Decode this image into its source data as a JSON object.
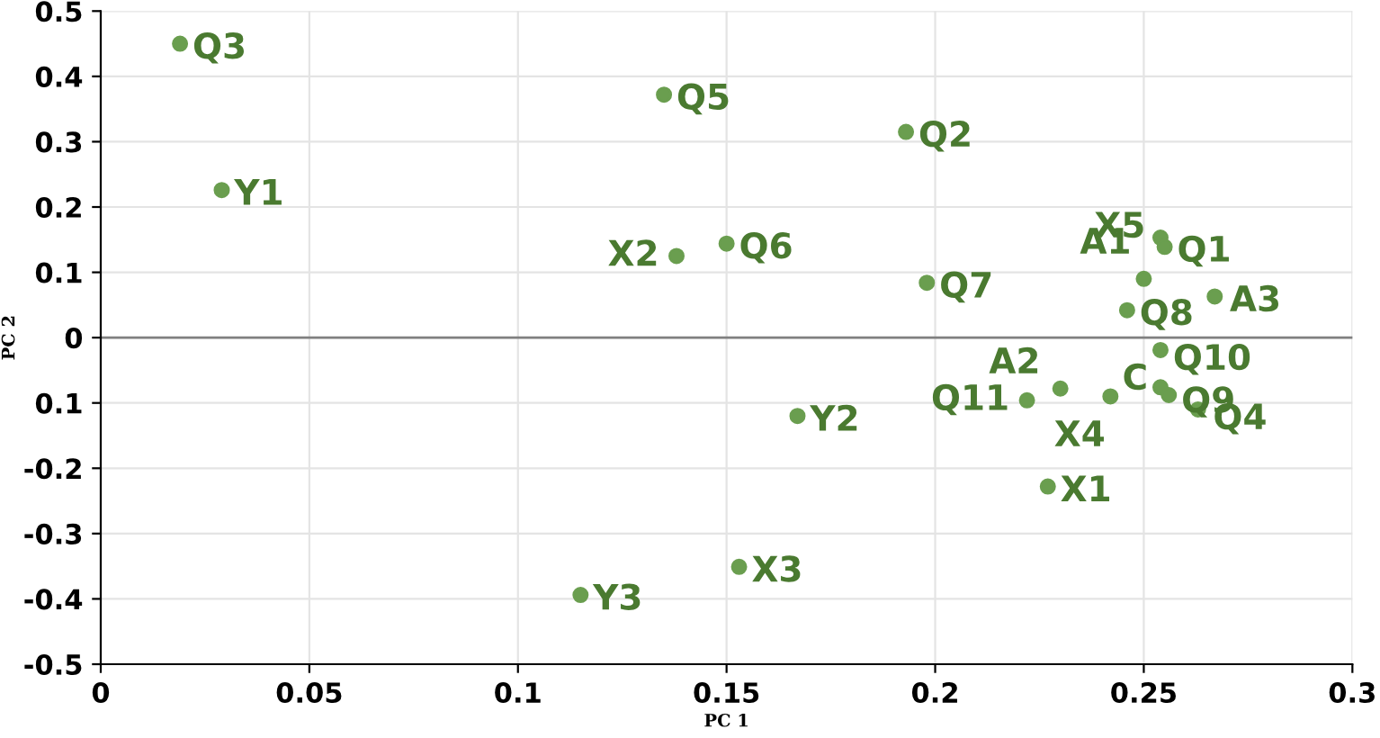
{
  "chart_data": {
    "type": "scatter",
    "xlabel": "PC 1",
    "ylabel": "PC 2",
    "x": [
      0.019,
      0.029,
      0.135,
      0.193,
      0.138,
      0.15,
      0.198,
      0.246,
      0.254,
      0.255,
      0.25,
      0.267,
      0.254,
      0.23,
      0.222,
      0.242,
      0.254,
      0.256,
      0.263,
      0.167,
      0.227,
      0.153,
      0.115
    ],
    "series": [
      {
        "color": "#6a9e4f",
        "values": [
          0.45,
          0.226,
          0.372,
          0.315,
          0.125,
          0.144,
          0.084,
          0.042,
          0.153,
          0.139,
          0.09,
          0.063,
          -0.019,
          -0.078,
          -0.096,
          -0.09,
          -0.076,
          -0.088,
          -0.11,
          -0.12,
          -0.228,
          -0.351,
          -0.394
        ]
      }
    ],
    "annotations": [
      {
        "text": "Q3",
        "x": 0.019,
        "y": 0.45
      },
      {
        "text": "Y1",
        "x": 0.029,
        "y": 0.226
      },
      {
        "text": "Q5",
        "x": 0.135,
        "y": 0.372
      },
      {
        "text": "Q2",
        "x": 0.193,
        "y": 0.315
      },
      {
        "text": "X2",
        "x": 0.138,
        "y": 0.125
      },
      {
        "text": "Q6",
        "x": 0.15,
        "y": 0.144
      },
      {
        "text": "Q7",
        "x": 0.198,
        "y": 0.084
      },
      {
        "text": "Q8",
        "x": 0.246,
        "y": 0.042
      },
      {
        "text": "X5",
        "x": 0.254,
        "y": 0.153
      },
      {
        "text": "Q1",
        "x": 0.255,
        "y": 0.139
      },
      {
        "text": "A1",
        "x": 0.25,
        "y": 0.09
      },
      {
        "text": "A3",
        "x": 0.267,
        "y": 0.063
      },
      {
        "text": "Q10",
        "x": 0.254,
        "y": -0.019
      },
      {
        "text": "A2",
        "x": 0.23,
        "y": -0.078
      },
      {
        "text": "Q11",
        "x": 0.222,
        "y": -0.096
      },
      {
        "text": "X4",
        "x": 0.242,
        "y": -0.09
      },
      {
        "text": "C",
        "x": 0.254,
        "y": -0.076
      },
      {
        "text": "Q9",
        "x": 0.256,
        "y": -0.088
      },
      {
        "text": "Q4",
        "x": 0.263,
        "y": -0.11
      },
      {
        "text": "Y2",
        "x": 0.167,
        "y": -0.12
      },
      {
        "text": "X1",
        "x": 0.227,
        "y": -0.228
      },
      {
        "text": "X3",
        "x": 0.153,
        "y": -0.351
      },
      {
        "text": "Y3",
        "x": 0.115,
        "y": -0.394
      }
    ],
    "ref_lines": [
      {
        "axis": "y",
        "value": 0,
        "color": "#808080"
      }
    ],
    "xlim": [
      0,
      0.3
    ],
    "ylim": [
      -0.5,
      0.5
    ],
    "xticks": [
      0,
      0.05,
      0.1,
      0.15,
      0.2,
      0.25,
      0.3
    ],
    "yticks": [
      -0.5,
      -0.4,
      -0.3,
      -0.2,
      {
        "value": -0.1,
        "label": "0.1"
      },
      0,
      0.1,
      0.2,
      0.3,
      0.4,
      0.5
    ],
    "grid": true,
    "marker": "circle"
  }
}
